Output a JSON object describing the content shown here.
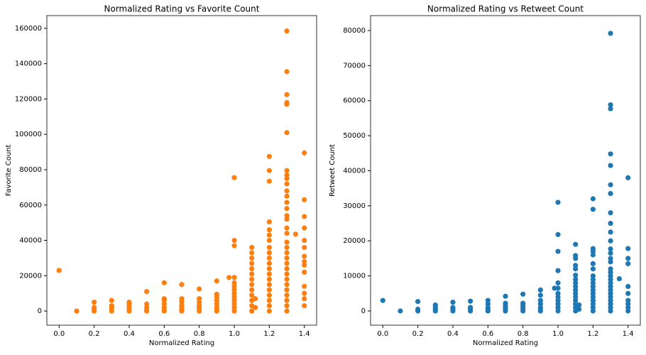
{
  "chart_data": [
    {
      "type": "scatter",
      "title": "Normalized Rating vs Favorite Count",
      "x_label": "Normalized Rating",
      "y_label": "Favorite Count",
      "color": "#ff7f0e",
      "xlim": [
        -0.07,
        1.47
      ],
      "ylim": [
        -8000,
        167200
      ],
      "xticks": [
        {
          "value": 0,
          "label": "0.0"
        },
        {
          "value": 0.2,
          "label": "0.2"
        },
        {
          "value": 0.4,
          "label": "0.4"
        },
        {
          "value": 0.6,
          "label": "0.6"
        },
        {
          "value": 0.8,
          "label": "0.8"
        },
        {
          "value": 1.0,
          "label": "1.0"
        },
        {
          "value": 1.2,
          "label": "1.2"
        },
        {
          "value": 1.4,
          "label": "1.4"
        }
      ],
      "yticks": [
        0,
        20000,
        40000,
        60000,
        80000,
        100000,
        120000,
        140000,
        160000
      ],
      "x": [
        0,
        0.1,
        0.2,
        0.2,
        0.2,
        0.2,
        0.3,
        0.3,
        0.3,
        0.3,
        0.4,
        0.4,
        0.4,
        0.4,
        0.4,
        0.5,
        0.5,
        0.5,
        0.5,
        0.5,
        0.6,
        0.6,
        0.6,
        0.6,
        0.6,
        0.6,
        0.6,
        0.7,
        0.7,
        0.7,
        0.7,
        0.7,
        0.7,
        0.7,
        0.8,
        0.8,
        0.8,
        0.8,
        0.8,
        0.8,
        0.8,
        0.9,
        0.9,
        0.9,
        0.9,
        0.9,
        0.9,
        0.9,
        0.9,
        0.97,
        1.0,
        1.0,
        1.0,
        1.0,
        1.0,
        1.0,
        1.0,
        1.0,
        1.0,
        1.0,
        1.0,
        1.0,
        1.0,
        1.1,
        1.1,
        1.1,
        1.1,
        1.1,
        1.1,
        1.1,
        1.1,
        1.1,
        1.1,
        1.1,
        1.1,
        1.1,
        1.12,
        1.12,
        1.2,
        1.2,
        1.2,
        1.2,
        1.2,
        1.2,
        1.2,
        1.2,
        1.2,
        1.2,
        1.2,
        1.2,
        1.2,
        1.2,
        1.2,
        1.2,
        1.2,
        1.2,
        1.2,
        1.2,
        1.3,
        1.3,
        1.3,
        1.3,
        1.3,
        1.3,
        1.3,
        1.3,
        1.3,
        1.3,
        1.3,
        1.3,
        1.3,
        1.3,
        1.3,
        1.3,
        1.3,
        1.3,
        1.3,
        1.3,
        1.3,
        1.3,
        1.3,
        1.3,
        1.3,
        1.3,
        1.3,
        1.3,
        1.3,
        1.3,
        1.3,
        1.3,
        1.35,
        1.4,
        1.4,
        1.4,
        1.4,
        1.4,
        1.4,
        1.4,
        1.4,
        1.4,
        1.4,
        1.4,
        1.4,
        1.4,
        1.4
      ],
      "values": [
        23000,
        0,
        0,
        1000,
        2000,
        5000,
        0,
        1500,
        3000,
        6000,
        0,
        1000,
        2500,
        4000,
        5000,
        0,
        1000,
        2000,
        4000,
        11000,
        0,
        1000,
        2000,
        4000,
        6000,
        7000,
        16000,
        0,
        1000,
        2000,
        3000,
        5000,
        7000,
        15000,
        0,
        1000,
        2000,
        3000,
        5000,
        7000,
        12500,
        0,
        1000,
        2000,
        4000,
        6000,
        8000,
        9500,
        17000,
        19000,
        0,
        2000,
        4000,
        6000,
        8000,
        10000,
        12000,
        14000,
        16000,
        19000,
        37000,
        40000,
        75500,
        0,
        3000,
        6000,
        9000,
        12000,
        15000,
        18000,
        21000,
        24000,
        27000,
        30000,
        33000,
        36000,
        2000,
        7000,
        0,
        3000,
        6000,
        9000,
        12000,
        15000,
        18000,
        21000,
        24000,
        27000,
        30000,
        33000,
        36000,
        40000,
        43000,
        46000,
        50500,
        73500,
        79500,
        87500,
        0,
        3000,
        6000,
        9000,
        12000,
        15000,
        18000,
        21000,
        24000,
        27000,
        30000,
        33000,
        36000,
        39000,
        44000,
        47000,
        52000,
        54000,
        58000,
        61500,
        65000,
        68000,
        72000,
        75000,
        77000,
        79500,
        101000,
        117000,
        118000,
        122500,
        135500,
        158500,
        43500,
        3000,
        7000,
        10000,
        14000,
        22000,
        26000,
        28000,
        31000,
        36000,
        40000,
        47000,
        53500,
        63000,
        89500
      ]
    },
    {
      "type": "scatter",
      "title": "Normalized Rating vs Retweet Count",
      "x_label": "Normalized Rating",
      "y_label": "Retweet Count",
      "color": "#1f77b4",
      "xlim": [
        -0.07,
        1.47
      ],
      "ylim": [
        -4050,
        84250
      ],
      "xticks": [
        {
          "value": 0,
          "label": "0.0"
        },
        {
          "value": 0.2,
          "label": "0.2"
        },
        {
          "value": 0.4,
          "label": "0.4"
        },
        {
          "value": 0.6,
          "label": "0.6"
        },
        {
          "value": 0.8,
          "label": "0.8"
        },
        {
          "value": 1.0,
          "label": "1.0"
        },
        {
          "value": 1.2,
          "label": "1.2"
        },
        {
          "value": 1.4,
          "label": "1.4"
        }
      ],
      "yticks": [
        0,
        10000,
        20000,
        30000,
        40000,
        50000,
        60000,
        70000,
        80000
      ],
      "x": [
        0,
        0.1,
        0.2,
        0.2,
        0.2,
        0.3,
        0.3,
        0.3,
        0.3,
        0.4,
        0.4,
        0.4,
        0.4,
        0.5,
        0.5,
        0.5,
        0.5,
        0.6,
        0.6,
        0.6,
        0.6,
        0.6,
        0.7,
        0.7,
        0.7,
        0.7,
        0.7,
        0.7,
        0.8,
        0.8,
        0.8,
        0.8,
        0.8,
        0.8,
        0.9,
        0.9,
        0.9,
        0.9,
        0.9,
        0.9,
        0.9,
        0.98,
        1.0,
        1.0,
        1.0,
        1.0,
        1.0,
        1.0,
        1.0,
        1.0,
        1.0,
        1.0,
        1.0,
        1.0,
        1.1,
        1.1,
        1.1,
        1.1,
        1.1,
        1.1,
        1.1,
        1.1,
        1.1,
        1.1,
        1.1,
        1.1,
        1.1,
        1.1,
        1.1,
        1.1,
        1.12,
        1.12,
        1.2,
        1.2,
        1.2,
        1.2,
        1.2,
        1.2,
        1.2,
        1.2,
        1.2,
        1.2,
        1.2,
        1.2,
        1.2,
        1.2,
        1.2,
        1.2,
        1.2,
        1.2,
        1.3,
        1.3,
        1.3,
        1.3,
        1.3,
        1.3,
        1.3,
        1.3,
        1.3,
        1.3,
        1.3,
        1.3,
        1.3,
        1.3,
        1.3,
        1.3,
        1.3,
        1.3,
        1.3,
        1.3,
        1.3,
        1.3,
        1.3,
        1.3,
        1.3,
        1.3,
        1.3,
        1.3,
        1.35,
        1.4,
        1.4,
        1.4,
        1.4,
        1.4,
        1.4,
        1.4,
        1.4,
        1.4,
        1.4
      ],
      "values": [
        3000,
        0,
        0,
        500,
        2700,
        0,
        500,
        1000,
        1700,
        0,
        500,
        1000,
        2500,
        0,
        500,
        1000,
        2800,
        0,
        500,
        1000,
        2000,
        3000,
        0,
        500,
        1000,
        1500,
        2200,
        4200,
        0,
        500,
        1000,
        1500,
        2200,
        4800,
        0,
        500,
        1000,
        2000,
        3000,
        4500,
        6000,
        6500,
        0,
        1000,
        2000,
        3000,
        4000,
        5000,
        6500,
        8000,
        11500,
        17000,
        21800,
        31000,
        0,
        1000,
        2000,
        3000,
        4000,
        5000,
        6000,
        7000,
        8000,
        9000,
        10200,
        12000,
        13000,
        15000,
        15800,
        19000,
        500,
        1700,
        0,
        1000,
        2000,
        3000,
        4000,
        5000,
        6000,
        7000,
        8000,
        9000,
        10000,
        12000,
        13500,
        16000,
        17000,
        17800,
        29000,
        32000,
        0,
        1000,
        2000,
        3000,
        4000,
        5000,
        6000,
        7000,
        8000,
        9000,
        10000,
        11000,
        12000,
        14000,
        15000,
        16500,
        17700,
        20000,
        22500,
        25000,
        28000,
        33500,
        36000,
        41500,
        44800,
        57700,
        58800,
        79200,
        9200,
        0,
        1000,
        2000,
        3000,
        5000,
        7000,
        13500,
        15000,
        17800,
        38000
      ]
    }
  ]
}
